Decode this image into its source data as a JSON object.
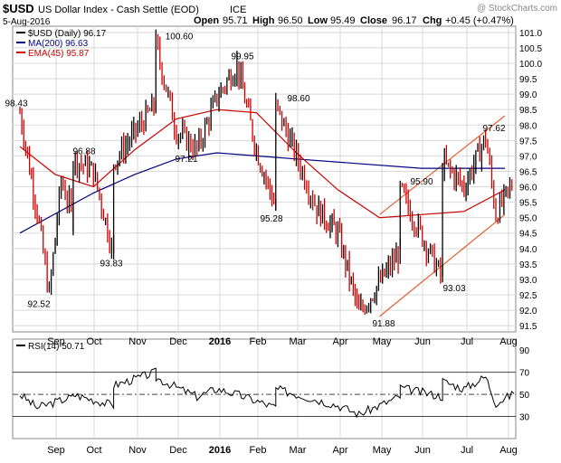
{
  "header": {
    "symbol": "$USD",
    "name": "US Dollar Index - Cash Settle (EOD)",
    "exchange": "ICE",
    "watermark": "@ StockCharts.com",
    "date": "5-Aug-2016",
    "quote": {
      "open": "95.71",
      "high": "96.50",
      "low": "95.49",
      "close": "96.17",
      "chg": "+0.45 (+0.47%)"
    },
    "quote_labels": {
      "open": "Open",
      "high": "High",
      "low": "Low",
      "close": "Close",
      "chg": "Chg"
    }
  },
  "colors": {
    "price_up": "#000000",
    "price_down": "#cc0000",
    "ma200": "#000080",
    "ema45": "#cc0000",
    "channel": "#e06030",
    "rsi": "#000000",
    "grid": "#d8d8d8"
  },
  "chart_data": [
    {
      "type": "line",
      "title": "$USD US Dollar Index - Cash Settle (EOD) ICE",
      "legend": [
        {
          "label": "$USD (Daily) 96.17",
          "color": "#000000"
        },
        {
          "label": "MA(200) 96.63",
          "color": "#000080"
        },
        {
          "label": "EMA(45) 95.87",
          "color": "#cc0000"
        }
      ],
      "legend_position": "top-left",
      "x_labels": [
        "Sep",
        "Oct",
        "Nov",
        "Dec",
        "2016",
        "Feb",
        "Mar",
        "Apr",
        "May",
        "Jun",
        "Jul",
        "Aug"
      ],
      "y_ticks": [
        91.5,
        92.0,
        92.5,
        93.0,
        93.5,
        94.0,
        94.5,
        95.0,
        95.5,
        96.0,
        96.5,
        97.0,
        97.5,
        98.0,
        98.5,
        99.0,
        99.5,
        100.0,
        100.5,
        101.0
      ],
      "ylim": [
        91.3,
        101.2
      ],
      "grid": true,
      "price_path": [
        [
          "Aug",
          98.4
        ],
        [
          "Sep",
          95.2
        ],
        [
          "Sep",
          92.5
        ],
        [
          "Sep",
          96.2
        ],
        [
          "Sep",
          95.0
        ],
        [
          "Oct",
          96.9
        ],
        [
          "Oct",
          96.5
        ],
        [
          "Oct",
          93.8
        ],
        [
          "Nov",
          96.8
        ],
        [
          "Nov",
          98.7
        ],
        [
          "Dec",
          100.6
        ],
        [
          "Dec",
          97.8
        ],
        [
          "Dec",
          97.2
        ],
        [
          "2016",
          98.9
        ],
        [
          "Feb",
          99.95
        ],
        [
          "Feb",
          97.2
        ],
        [
          "Feb",
          95.3
        ],
        [
          "Mar",
          98.6
        ],
        [
          "Mar",
          97.0
        ],
        [
          "Mar",
          95.3
        ],
        [
          "Apr",
          94.5
        ],
        [
          "May",
          91.9
        ],
        [
          "May",
          93.9
        ],
        [
          "Jun",
          95.9
        ],
        [
          "Jun",
          93.0
        ],
        [
          "Jul",
          96.8
        ],
        [
          "Jul",
          96.0
        ],
        [
          "Jul",
          97.6
        ],
        [
          "Aug",
          95.1
        ],
        [
          "Aug",
          96.17
        ]
      ],
      "ma200_path": [
        [
          "Aug",
          94.5
        ],
        [
          "Oct",
          95.8
        ],
        [
          "Nov",
          96.4
        ],
        [
          "Dec",
          96.9
        ],
        [
          "2016",
          97.1
        ],
        [
          "Feb",
          97.0
        ],
        [
          "Mar",
          96.9
        ],
        [
          "Jun",
          96.6
        ],
        [
          "Aug",
          96.6
        ]
      ],
      "ema45_path": [
        [
          "Aug",
          97.3
        ],
        [
          "Sep",
          96.4
        ],
        [
          "Oct",
          96.0
        ],
        [
          "Nov",
          97.2
        ],
        [
          "Dec",
          98.2
        ],
        [
          "2016",
          98.5
        ],
        [
          "Feb",
          98.4
        ],
        [
          "Mar",
          97.1
        ],
        [
          "Apr",
          95.9
        ],
        [
          "May",
          95.0
        ],
        [
          "Jun",
          95.1
        ],
        [
          "Jul",
          95.2
        ],
        [
          "Aug",
          95.9
        ]
      ],
      "channel_upper": [
        [
          "May",
          95.1
        ],
        [
          "Aug",
          98.3
        ]
      ],
      "channel_lower": [
        [
          "May",
          91.8
        ],
        [
          "Aug",
          95.1
        ]
      ],
      "annotations": [
        {
          "x": "Aug",
          "y": 98.43,
          "label": "98.43"
        },
        {
          "x": "Sep",
          "y": 92.52,
          "label": "92.52"
        },
        {
          "x": "Oct",
          "y": 96.88,
          "label": "96.88"
        },
        {
          "x": "Oct",
          "y": 93.83,
          "label": "93.83"
        },
        {
          "x": "Dec",
          "y": 100.6,
          "label": "100.60"
        },
        {
          "x": "Dec",
          "y": 97.21,
          "label": "97.21"
        },
        {
          "x": "Feb",
          "y": 99.95,
          "label": "99.95"
        },
        {
          "x": "Feb",
          "y": 95.28,
          "label": "95.28"
        },
        {
          "x": "Mar",
          "y": 98.6,
          "label": "98.60"
        },
        {
          "x": "May",
          "y": 91.88,
          "label": "91.88"
        },
        {
          "x": "Jun",
          "y": 95.9,
          "label": "95.90"
        },
        {
          "x": "Jun",
          "y": 93.03,
          "label": "93.03"
        },
        {
          "x": "Jul",
          "y": 97.62,
          "label": "97.62"
        }
      ]
    },
    {
      "type": "line",
      "legend": [
        {
          "label": "RSI(14) 50.71",
          "color": "#000000"
        }
      ],
      "x_labels": [
        "Sep",
        "Oct",
        "Nov",
        "Dec",
        "2016",
        "Feb",
        "Mar",
        "Apr",
        "May",
        "Jun",
        "Jul",
        "Aug"
      ],
      "y_ticks": [
        30,
        50,
        70,
        90
      ],
      "ylim": [
        10,
        100
      ],
      "reference_lines": [
        30,
        50,
        70
      ],
      "rsi_path": [
        [
          "Aug",
          50
        ],
        [
          "Sep",
          38
        ],
        [
          "Sep",
          48
        ],
        [
          "Oct",
          50
        ],
        [
          "Oct",
          40
        ],
        [
          "Nov",
          58
        ],
        [
          "Nov",
          70
        ],
        [
          "Dec",
          65
        ],
        [
          "Dec",
          48
        ],
        [
          "2016",
          55
        ],
        [
          "Feb",
          50
        ],
        [
          "Feb",
          38
        ],
        [
          "Mar",
          55
        ],
        [
          "Mar",
          45
        ],
        [
          "Apr",
          40
        ],
        [
          "May",
          32
        ],
        [
          "May",
          48
        ],
        [
          "Jun",
          56
        ],
        [
          "Jun",
          48
        ],
        [
          "Jul",
          62
        ],
        [
          "Jul",
          55
        ],
        [
          "Jul",
          66
        ],
        [
          "Aug",
          42
        ],
        [
          "Aug",
          50.71
        ]
      ]
    }
  ]
}
